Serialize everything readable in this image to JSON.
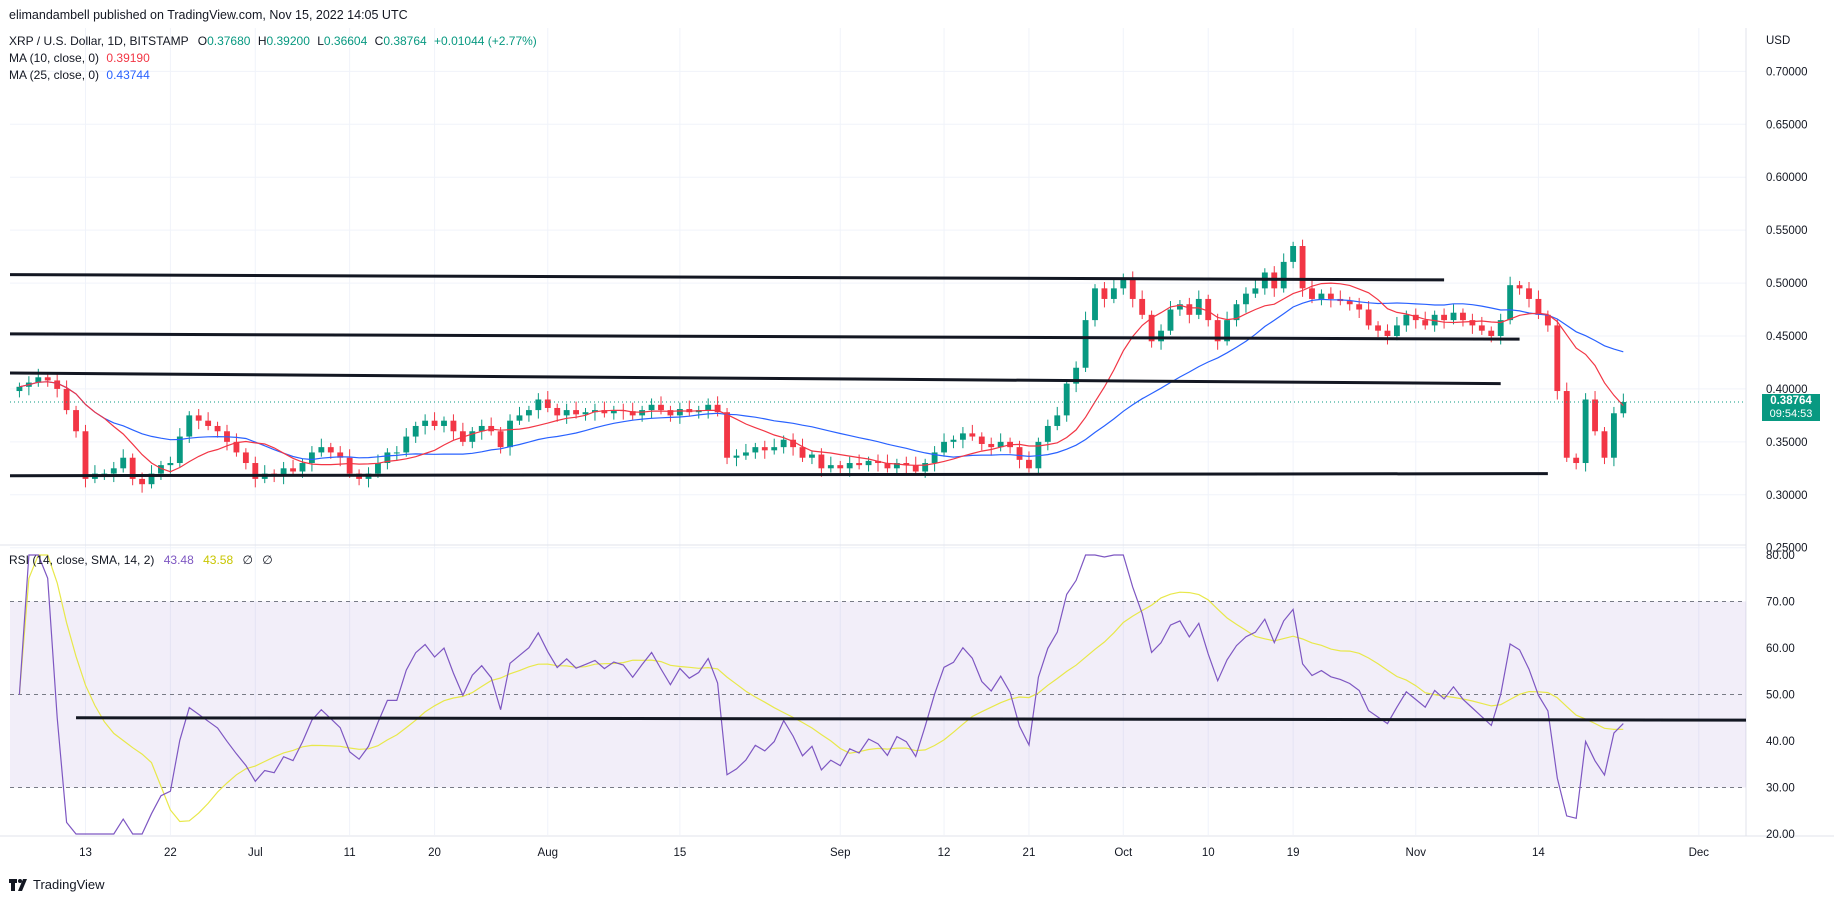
{
  "publisher": "elimandambell published on TradingView.com, Nov 15, 2022 14:05 UTC",
  "header": {
    "symbol": "XRP / U.S. Dollar, 1D, BITSTAMP",
    "open_label": "O",
    "open": "0.37680",
    "high_label": "H",
    "high": "0.39200",
    "low_label": "L",
    "low": "0.36604",
    "close_label": "C",
    "close": "0.38764",
    "change": "+0.01044 (+2.77%)"
  },
  "indicators": {
    "ma10_label": "MA (10, close, 0)",
    "ma10_value": "0.39190",
    "ma10_color": "#f23645",
    "ma25_label": "MA (25, close, 0)",
    "ma25_value": "0.43744",
    "ma25_color": "#2962ff",
    "rsi_label": "RSI (14, close, SMA, 14, 2)",
    "rsi_value": "43.48",
    "rsi_sma_value": "43.58",
    "rsi_extra1": "∅",
    "rsi_extra2": "∅"
  },
  "price_tag": {
    "price": "0.38764",
    "countdown": "09:54:53"
  },
  "footer": {
    "logo_text": "TradingView",
    "logo_icon": "tradingview-logo-icon"
  },
  "chart_data": [
    {
      "type": "candlestick",
      "title": "XRP / U.S. Dollar, 1D, BITSTAMP",
      "y_unit": "USD",
      "ylim": [
        0.25,
        0.72
      ],
      "y_ticks": [
        "0.70000",
        "0.65000",
        "0.60000",
        "0.55000",
        "0.50000",
        "0.45000",
        "0.40000",
        "0.35000",
        "0.30000",
        "0.25000"
      ],
      "y_tick_values": [
        0.7,
        0.65,
        0.6,
        0.55,
        0.5,
        0.45,
        0.4,
        0.35,
        0.3,
        0.25
      ],
      "x_ticks": [
        {
          "label": "13",
          "day": 7
        },
        {
          "label": "22",
          "day": 16
        },
        {
          "label": "Jul",
          "day": 25
        },
        {
          "label": "11",
          "day": 35
        },
        {
          "label": "20",
          "day": 44
        },
        {
          "label": "Aug",
          "day": 56
        },
        {
          "label": "15",
          "day": 70
        },
        {
          "label": "Sep",
          "day": 87
        },
        {
          "label": "12",
          "day": 98
        },
        {
          "label": "21",
          "day": 107
        },
        {
          "label": "Oct",
          "day": 117
        },
        {
          "label": "10",
          "day": 126
        },
        {
          "label": "19",
          "day": 135
        },
        {
          "label": "Nov",
          "day": 148
        },
        {
          "label": "14",
          "day": 161
        },
        {
          "label": "Dec",
          "day": 178
        }
      ],
      "x_range_days": [
        -1,
        183
      ],
      "closes": [
        0.402,
        0.406,
        0.411,
        0.408,
        0.4,
        0.38,
        0.36,
        0.315,
        0.32,
        0.32,
        0.325,
        0.335,
        0.315,
        0.31,
        0.32,
        0.328,
        0.33,
        0.355,
        0.375,
        0.37,
        0.365,
        0.36,
        0.35,
        0.34,
        0.33,
        0.315,
        0.32,
        0.318,
        0.325,
        0.322,
        0.33,
        0.34,
        0.345,
        0.34,
        0.335,
        0.32,
        0.315,
        0.32,
        0.33,
        0.34,
        0.34,
        0.355,
        0.365,
        0.37,
        0.365,
        0.37,
        0.36,
        0.35,
        0.36,
        0.365,
        0.36,
        0.345,
        0.37,
        0.375,
        0.38,
        0.39,
        0.382,
        0.375,
        0.38,
        0.376,
        0.378,
        0.38,
        0.377,
        0.38,
        0.379,
        0.375,
        0.38,
        0.385,
        0.38,
        0.375,
        0.381,
        0.378,
        0.38,
        0.385,
        0.378,
        0.335,
        0.337,
        0.34,
        0.345,
        0.342,
        0.345,
        0.352,
        0.345,
        0.335,
        0.338,
        0.325,
        0.328,
        0.325,
        0.33,
        0.328,
        0.332,
        0.33,
        0.325,
        0.33,
        0.328,
        0.322,
        0.33,
        0.34,
        0.35,
        0.352,
        0.358,
        0.355,
        0.348,
        0.345,
        0.35,
        0.345,
        0.333,
        0.325,
        0.35,
        0.365,
        0.375,
        0.405,
        0.42,
        0.465,
        0.495,
        0.485,
        0.495,
        0.505,
        0.485,
        0.47,
        0.445,
        0.455,
        0.475,
        0.48,
        0.47,
        0.485,
        0.465,
        0.445,
        0.465,
        0.48,
        0.49,
        0.495,
        0.51,
        0.495,
        0.52,
        0.535,
        0.495,
        0.485,
        0.49,
        0.485,
        0.483,
        0.48,
        0.475,
        0.46,
        0.455,
        0.45,
        0.46,
        0.47,
        0.465,
        0.46,
        0.47,
        0.465,
        0.472,
        0.465,
        0.46,
        0.455,
        0.45,
        0.465,
        0.498,
        0.495,
        0.485,
        0.47,
        0.46,
        0.398,
        0.335,
        0.33,
        0.39,
        0.36,
        0.335,
        0.377,
        0.3876
      ],
      "ma10_color": "#f23645",
      "ma25_color": "#2962ff",
      "up_color": "#089981",
      "down_color": "#f23645",
      "trendlines": [
        {
          "d1": -1,
          "p1": 0.508,
          "d2": 151,
          "p2": 0.503
        },
        {
          "d1": -1,
          "p1": 0.452,
          "d2": 159,
          "p2": 0.447
        },
        {
          "d1": -1,
          "p1": 0.415,
          "d2": 157,
          "p2": 0.405
        },
        {
          "d1": -1,
          "p1": 0.318,
          "d2": 162,
          "p2": 0.32
        }
      ]
    },
    {
      "type": "line",
      "title": "RSI (14, close, SMA, 14, 2)",
      "ylim": [
        20,
        80
      ],
      "y_ticks": [
        "80.00",
        "70.00",
        "60.00",
        "50.00",
        "40.00",
        "30.00",
        "20.00"
      ],
      "y_tick_values": [
        80,
        70,
        60,
        50,
        40,
        30,
        20
      ],
      "overbought": 70,
      "middle": 50,
      "oversold": 30,
      "band_color": "#7e57c2",
      "rsi_color": "#7e57c2",
      "rsi_sma_color": "#e8e84a",
      "trendline": {
        "d1": 6,
        "p1": 45.0,
        "d2": 183,
        "p2": 44.5
      }
    }
  ]
}
